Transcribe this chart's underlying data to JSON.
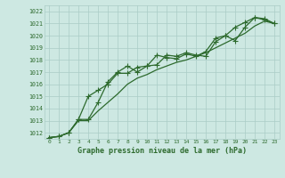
{
  "xlabel": "Graphe pression niveau de la mer (hPa)",
  "x": [
    0,
    1,
    2,
    3,
    4,
    5,
    6,
    7,
    8,
    9,
    10,
    11,
    12,
    13,
    14,
    15,
    16,
    17,
    18,
    19,
    20,
    21,
    22,
    23
  ],
  "line1": [
    1011.6,
    1011.7,
    1012.0,
    1013.1,
    1013.1,
    1014.5,
    1016.2,
    1017.0,
    1017.5,
    1017.0,
    1017.5,
    1018.4,
    1018.2,
    1018.1,
    1018.5,
    1018.3,
    1018.7,
    1019.8,
    1020.0,
    1019.6,
    1020.7,
    1021.5,
    1021.3,
    1021.0
  ],
  "line2": [
    1011.6,
    1011.7,
    1012.0,
    1013.1,
    1015.0,
    1015.5,
    1016.0,
    1016.9,
    1016.9,
    1017.4,
    1017.5,
    1017.6,
    1018.4,
    1018.3,
    1018.6,
    1018.4,
    1018.3,
    1019.5,
    1020.0,
    1020.7,
    1021.1,
    1021.5,
    1021.4,
    1021.0
  ],
  "line3": [
    1011.6,
    1011.7,
    1012.0,
    1013.0,
    1013.0,
    1013.8,
    1014.5,
    1015.2,
    1016.0,
    1016.5,
    1016.8,
    1017.2,
    1017.5,
    1017.8,
    1018.0,
    1018.3,
    1018.6,
    1019.0,
    1019.4,
    1019.8,
    1020.2,
    1020.8,
    1021.2,
    1021.0
  ],
  "line_color": "#2d6a2d",
  "bg_color": "#cde8e2",
  "grid_color": "#aaccc6",
  "text_color": "#2d6a2d",
  "ylim": [
    1011.5,
    1022.5
  ],
  "yticks": [
    1012,
    1013,
    1014,
    1015,
    1016,
    1017,
    1018,
    1019,
    1020,
    1021,
    1022
  ],
  "linewidth": 0.9,
  "marker_size": 2.5
}
